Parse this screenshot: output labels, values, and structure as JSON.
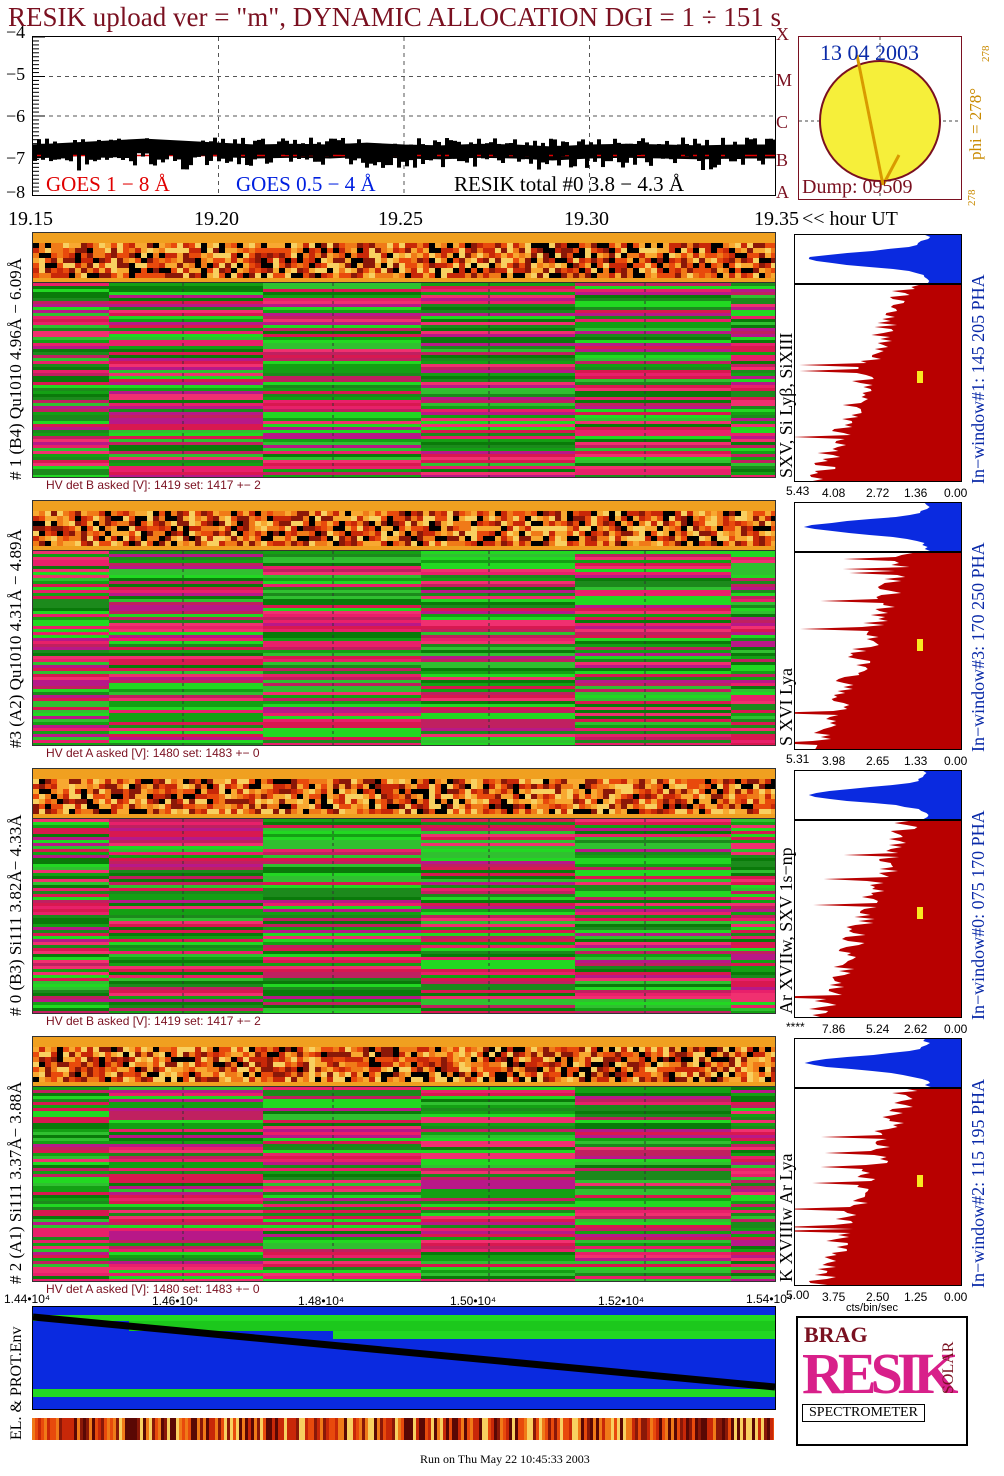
{
  "header": {
    "title": "RESIK upload ver = \"m\", DYNAMIC ALLOCATION  DGI =   1 ÷ 151 s"
  },
  "goes": {
    "y_ticks": [
      "−4",
      "−5",
      "−6",
      "−7",
      "−8"
    ],
    "legend_goes18": "GOES 1 − 8 Å",
    "legend_goes054": "GOES 0.5 − 4 Å",
    "legend_resik": "RESIK total #0  3.8 − 4.3 Å",
    "hour_ticks": [
      "19.15",
      "19.20",
      "19.25",
      "19.30",
      "19.35"
    ],
    "hour_label": "<< hour UT",
    "colors": {
      "goes18": "#e00000",
      "goes054": "#0020e0",
      "resik": "#000000"
    }
  },
  "sun": {
    "date": "13 04 2003",
    "dump": "Dump: 09509",
    "phi": "phi = 278°",
    "phi_small": "278",
    "phi_bottom": "278",
    "xmcba": [
      "X",
      "M",
      "C",
      "B",
      "A"
    ],
    "sun_color": "#f6ef3a"
  },
  "detectors": [
    {
      "label": "# 1 (B4) Qu1010 4.96Å − 6.09Å",
      "hv": "HV det B asked [V]:  1419 set:  1417 +−    2",
      "lines": "SXV, Si Lyβ, SiXIII",
      "window": "In−window#1:  145 205 PHA",
      "pha_ticks": [
        "5.43",
        "4.08",
        "2.72",
        "1.36",
        "0.00"
      ]
    },
    {
      "label": "#3 (A2) Qu1010  4.31Å − 4.89Å",
      "hv": "HV det A asked [V]:  1480 set:  1483 +−    0",
      "lines": "S XVI Lya",
      "window": "In−window#3:  170 250 PHA",
      "pha_ticks": [
        "5.31",
        "3.98",
        "2.65",
        "1.33",
        "0.00"
      ]
    },
    {
      "label": "# 0 (B3) Si111  3.82Å− 4.33Å",
      "hv": "HV det B asked [V]:  1419 set:  1417 +−    2",
      "lines": "Ar XVIIw,  SXV 1s−np",
      "window": "In−window#0:  075 170 PHA",
      "pha_ticks": [
        "****",
        "7.86",
        "5.24",
        "2.62",
        "0.00"
      ]
    },
    {
      "label": "# 2 (A1) Si111  3.37Å− 3.88Å",
      "hv": "HV det A asked [V]:  1480 set:  1483 +−    0",
      "lines": "K XVIIIw  Ar Lya",
      "window": "In−window#2:  115 195 PHA",
      "pha_ticks": [
        "5.00",
        "3.75",
        "2.50",
        "1.25",
        "0.00"
      ]
    }
  ],
  "pha_unit": "cts/bin/sec",
  "env": {
    "label": "EL. & PROT.Env",
    "x_ticks": [
      "1.44•10⁴",
      "1.46•10⁴",
      "1.48•10⁴",
      "1.50•10⁴",
      "1.52•10⁴",
      "1.54•10⁴"
    ]
  },
  "logo": {
    "top_small": "BRAG",
    "main": "RESIK",
    "side": "SOLAR",
    "bottom": "SPECTROMETER"
  },
  "footer": "Run on Thu May 22 10:45:33 2003",
  "chart_data": {
    "type": "line",
    "title": "RESIK upload ver = \"m\", DYNAMIC ALLOCATION  DGI =   1 ÷ 151 s",
    "xlabel": "hour UT",
    "ylabel": "",
    "x_range": [
      19.15,
      19.35
    ],
    "ylim": [
      -8,
      -4
    ],
    "x": [
      19.15,
      19.16,
      19.17,
      19.18,
      19.19,
      19.2,
      19.21,
      19.22,
      19.23,
      19.24,
      19.25,
      19.26,
      19.27,
      19.28,
      19.29,
      19.3,
      19.31,
      19.32,
      19.33,
      19.34,
      19.35
    ],
    "series": [
      {
        "name": "RESIK total #0  3.8 − 4.3 Å",
        "values": [
          -6.9,
          -6.85,
          -6.8,
          -6.75,
          -6.8,
          -6.85,
          -6.9,
          -6.88,
          -6.9,
          -6.85,
          -6.9,
          -6.92,
          -6.88,
          -6.9,
          -6.95,
          -6.9,
          -6.88,
          -6.9,
          -6.92,
          -6.9,
          -6.9
        ]
      },
      {
        "name": "GOES 1 − 8 Å",
        "values": [
          -7.0,
          -7.0,
          -7.0,
          -7.0,
          -7.0,
          -7.0,
          -7.0,
          -7.0,
          -7.0,
          -7.0,
          -7.0,
          -7.0,
          -7.0,
          -7.0,
          -7.0,
          -7.0,
          -7.0,
          -7.0,
          -7.0,
          -7.0,
          -7.0
        ]
      }
    ],
    "grid": true
  }
}
